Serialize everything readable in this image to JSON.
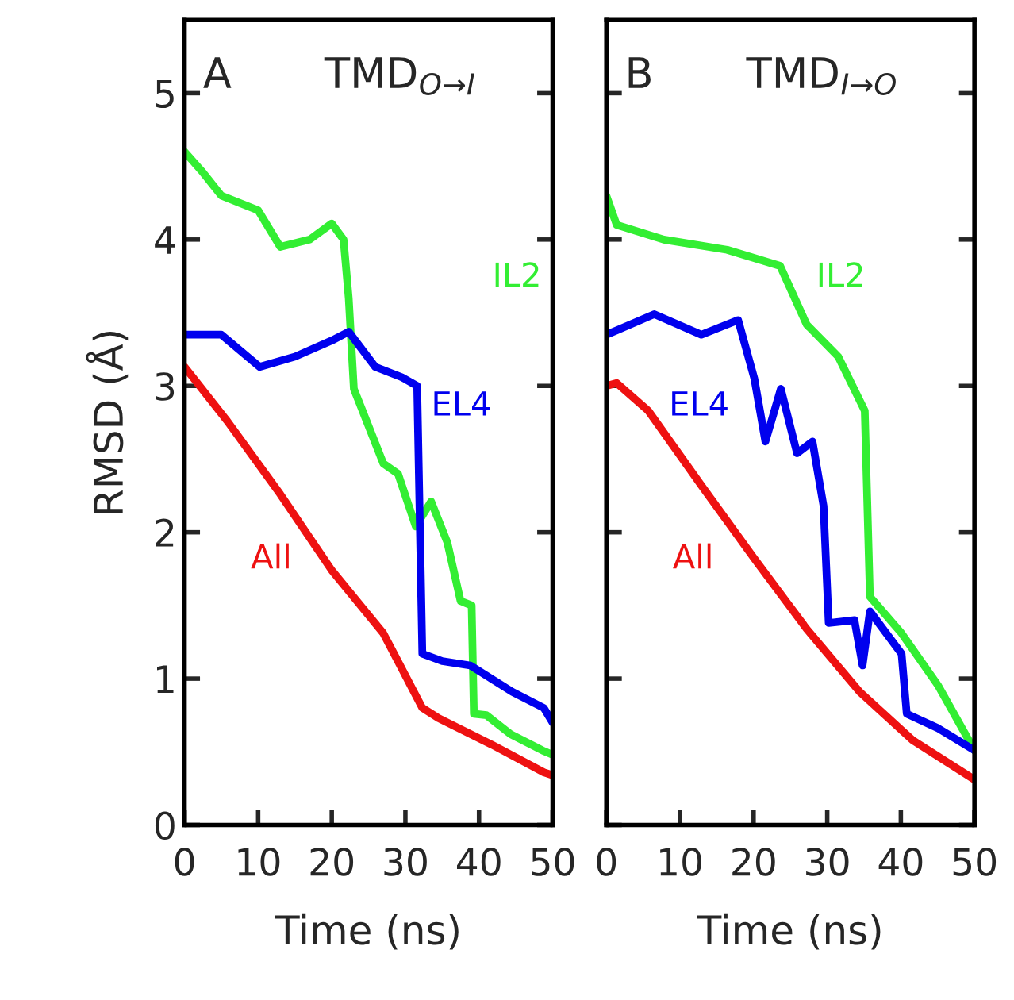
{
  "chart_data": [
    {
      "type": "line",
      "annotations": [
        "A",
        "TMD$_{O→I}$"
      ],
      "xlabel": "Time (ns)",
      "ylabel": "RMSD (Å)",
      "xlim": [
        0,
        50
      ],
      "ylim": [
        0,
        5.5
      ],
      "xticks": [
        0,
        10,
        20,
        30,
        40,
        50
      ],
      "yticks": [
        0,
        1,
        2,
        3,
        4,
        5
      ],
      "grid": false,
      "legend": false,
      "series": [
        {
          "name": "IL2",
          "color": "#33ee33",
          "x": [
            0,
            2.3,
            5,
            10,
            13,
            17,
            20,
            21.6,
            22.3,
            23,
            27,
            29,
            31.4,
            33.5,
            35.7,
            37.5,
            39,
            39.3,
            41,
            44.3,
            48.6,
            50
          ],
          "values": [
            4.6,
            4.47,
            4.3,
            4.2,
            3.95,
            4.0,
            4.11,
            4.0,
            3.6,
            2.98,
            2.47,
            2.4,
            2.04,
            2.21,
            1.93,
            1.53,
            1.5,
            0.76,
            0.75,
            0.62,
            0.51,
            0.48
          ]
        },
        {
          "name": "EL4",
          "color": "#0000ee",
          "x": [
            0,
            5,
            10.2,
            15,
            20,
            22.3,
            25.9,
            29.5,
            31.6,
            32.3,
            35,
            38.8,
            44.5,
            48.8,
            50
          ],
          "values": [
            3.35,
            3.35,
            3.13,
            3.2,
            3.31,
            3.37,
            3.13,
            3.06,
            3.0,
            1.17,
            1.12,
            1.09,
            0.91,
            0.8,
            0.7
          ]
        },
        {
          "name": "All",
          "color": "#ee1111",
          "x": [
            0,
            5.8,
            13,
            20,
            27,
            32.3,
            34.5,
            41.7,
            48.8,
            50
          ],
          "values": [
            3.13,
            2.76,
            2.26,
            1.74,
            1.31,
            0.8,
            0.73,
            0.55,
            0.36,
            0.34
          ]
        }
      ]
    },
    {
      "type": "line",
      "annotations": [
        "B",
        "TMD$_{I→O}$"
      ],
      "xlabel": "Time (ns)",
      "xlim": [
        0,
        50
      ],
      "ylim": [
        0,
        5.5
      ],
      "xticks": [
        0,
        10,
        20,
        30,
        40,
        50
      ],
      "yticks": [
        0,
        1,
        2,
        3,
        4,
        5
      ],
      "tick_labels": "x",
      "grid": false,
      "legend": false,
      "series": [
        {
          "name": "IL2",
          "color": "#33ee33",
          "x": [
            0,
            1.4,
            7.8,
            16.4,
            23.6,
            27.2,
            31.5,
            35.1,
            35.8,
            40.1,
            45.1,
            50
          ],
          "values": [
            4.3,
            4.1,
            4.0,
            3.93,
            3.82,
            3.42,
            3.2,
            2.83,
            1.56,
            1.31,
            0.95,
            0.51
          ]
        },
        {
          "name": "EL4",
          "color": "#0000ee",
          "x": [
            0,
            1.4,
            6.5,
            12.9,
            17.9,
            20.1,
            21.6,
            23.7,
            25.9,
            28,
            29.5,
            30.2,
            33.7,
            34.8,
            35.8,
            40.1,
            40.8,
            45.1,
            50
          ],
          "values": [
            3.35,
            3.38,
            3.49,
            3.35,
            3.45,
            3.05,
            2.62,
            2.98,
            2.54,
            2.62,
            2.18,
            1.38,
            1.4,
            1.09,
            1.46,
            1.17,
            0.76,
            0.66,
            0.51
          ]
        },
        {
          "name": "All",
          "color": "#ee1111",
          "x": [
            0,
            1.4,
            5.7,
            12.9,
            20.1,
            27.2,
            34.4,
            41.6,
            50
          ],
          "values": [
            3.0,
            3.02,
            2.83,
            2.32,
            1.82,
            1.34,
            0.91,
            0.58,
            0.31
          ]
        }
      ]
    }
  ]
}
